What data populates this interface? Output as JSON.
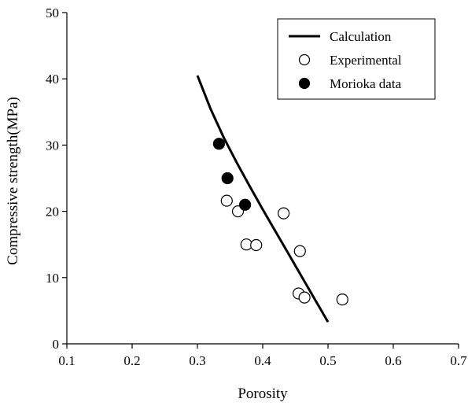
{
  "chart_data": {
    "type": "scatter",
    "xlabel": "Porosity",
    "ylabel": "Compressive strength(MPa)",
    "xlim": [
      0.1,
      0.7
    ],
    "ylim": [
      0,
      50
    ],
    "xticks": [
      0.1,
      0.2,
      0.3,
      0.4,
      0.5,
      0.6,
      0.7
    ],
    "yticks": [
      0,
      10,
      20,
      30,
      40,
      50
    ],
    "xtick_labels": [
      "0.1",
      "0.2",
      "0.3",
      "0.4",
      "0.5",
      "0.6",
      "0.7"
    ],
    "ytick_labels": [
      "0",
      "10",
      "20",
      "30",
      "40",
      "50"
    ],
    "grid": false,
    "legend_position": "top-right",
    "series": [
      {
        "name": "Calculation",
        "kind": "line",
        "color": "#000000",
        "x": [
          0.3,
          0.32,
          0.34,
          0.36,
          0.38,
          0.4,
          0.42,
          0.44,
          0.46,
          0.48,
          0.5
        ],
        "y": [
          40.5,
          35.5,
          31.2,
          27.4,
          23.8,
          20.3,
          16.9,
          13.5,
          10.1,
          6.7,
          3.3
        ]
      },
      {
        "name": "Experimental",
        "kind": "scatter",
        "marker": "open-circle",
        "color": "#000000",
        "x": [
          0.345,
          0.362,
          0.375,
          0.39,
          0.432,
          0.457,
          0.455,
          0.464,
          0.522
        ],
        "y": [
          21.6,
          20.0,
          15.0,
          14.9,
          19.7,
          14.0,
          7.6,
          7.0,
          6.7
        ]
      },
      {
        "name": "Morioka data",
        "kind": "scatter",
        "marker": "filled-circle",
        "color": "#000000",
        "x": [
          0.333,
          0.346,
          0.373
        ],
        "y": [
          30.2,
          25.0,
          21.0
        ]
      }
    ]
  }
}
